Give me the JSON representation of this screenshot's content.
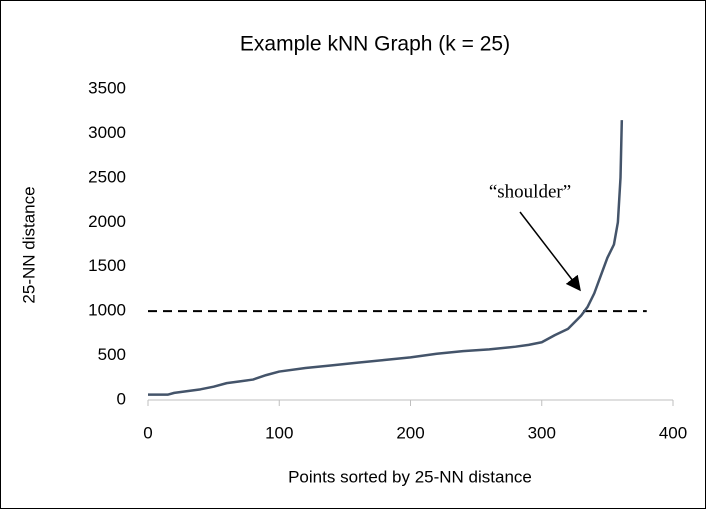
{
  "chart_data": {
    "type": "line",
    "title": "Example kNN Graph (k = 25)",
    "x_label": "Points sorted by 25-NN distance",
    "y_label": "25-NN distance",
    "x": [
      0,
      15,
      20,
      30,
      40,
      50,
      60,
      70,
      80,
      90,
      100,
      120,
      140,
      160,
      180,
      200,
      220,
      240,
      260,
      280,
      290,
      300,
      310,
      320,
      330,
      335,
      340,
      345,
      350,
      355,
      358,
      360,
      361
    ],
    "series": [
      {
        "name": "25-NN distance",
        "color": "#44546a",
        "values": [
          60,
          60,
          80,
          100,
          120,
          150,
          190,
          210,
          230,
          280,
          320,
          360,
          390,
          420,
          450,
          480,
          520,
          550,
          570,
          600,
          620,
          650,
          730,
          800,
          950,
          1050,
          1200,
          1400,
          1600,
          1750,
          2000,
          2500,
          3150
        ]
      }
    ],
    "xlim": [
      0,
      400
    ],
    "xticks": [
      0,
      100,
      200,
      300,
      400
    ],
    "ylim": [
      0,
      3500
    ],
    "yticks": [
      0,
      500,
      1000,
      1500,
      2000,
      2500,
      3000,
      3500
    ],
    "grid": false,
    "hline": {
      "y": 1000,
      "x": [
        0,
        380
      ]
    },
    "annotation": "“shoulder”"
  }
}
